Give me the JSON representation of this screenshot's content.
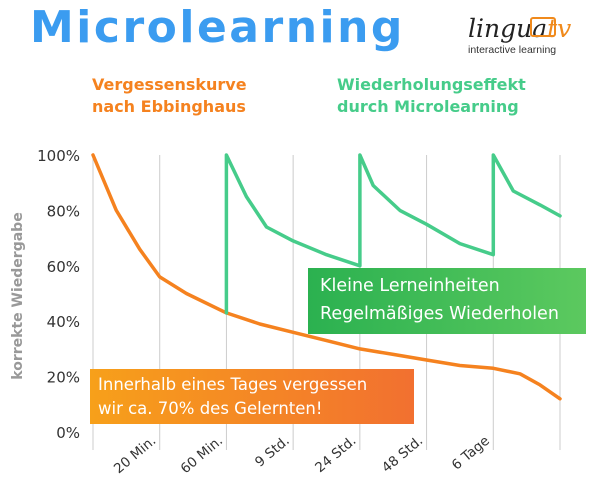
{
  "header": {
    "title": "Microlearning"
  },
  "logo": {
    "word_main": "lingua",
    "word_accent": "tv",
    "subtitle": "interactive learning"
  },
  "legend": {
    "orange": {
      "line1": "Vergessenskurve",
      "line2": "nach Ebbinghaus"
    },
    "green": {
      "line1": "Wiederholungseffekt",
      "line2": "durch Microlearning"
    }
  },
  "callouts": {
    "green": {
      "line1": "Kleine Lerneinheiten",
      "line2": "Regelmäßiges Wiederholen"
    },
    "orange": {
      "line1": "Innerhalb eines Tages vergessen",
      "line2": "wir ca. 70% des Gelernten!"
    }
  },
  "colors": {
    "title": "#3b9cf0",
    "forgetting_curve": "#f5821f",
    "repetition_curve": "#46cc8a",
    "grid": "#cccccc"
  },
  "chart_data": {
    "type": "line",
    "title": "",
    "xlabel": "",
    "ylabel": "korrekte Wiedergabe",
    "categories": [
      "20 Min.",
      "60 Min.",
      "9 Std.",
      "24 Std.",
      "48 Std.",
      "6 Tage"
    ],
    "y_ticks": [
      "100%",
      "80%",
      "60%",
      "40%",
      "20%",
      "0%"
    ],
    "ylim": [
      0,
      100
    ],
    "xlim": [
      0,
      7
    ],
    "grid": "vertical",
    "series": [
      {
        "name": "Vergessenskurve nach Ebbinghaus",
        "color": "#f5821f",
        "points": [
          [
            0,
            100
          ],
          [
            0.35,
            80
          ],
          [
            0.7,
            66
          ],
          [
            1,
            56
          ],
          [
            1.4,
            50
          ],
          [
            2,
            43
          ],
          [
            2.5,
            39
          ],
          [
            3,
            36
          ],
          [
            3.5,
            33
          ],
          [
            4,
            30
          ],
          [
            4.5,
            28
          ],
          [
            5,
            26
          ],
          [
            5.5,
            24
          ],
          [
            6,
            23
          ],
          [
            6.4,
            21
          ],
          [
            6.7,
            17
          ],
          [
            7,
            12
          ]
        ]
      },
      {
        "name": "Wiederholungseffekt durch Microlearning",
        "color": "#46cc8a",
        "points": [
          [
            2,
            43
          ],
          [
            2,
            100
          ],
          [
            2.3,
            85
          ],
          [
            2.6,
            74
          ],
          [
            3,
            69
          ],
          [
            3.5,
            64
          ],
          [
            4,
            60
          ],
          [
            4,
            100
          ],
          [
            4.2,
            89
          ],
          [
            4.6,
            80
          ],
          [
            5,
            75
          ],
          [
            5.5,
            68
          ],
          [
            6,
            64
          ],
          [
            6,
            100
          ],
          [
            6.3,
            87
          ],
          [
            6.7,
            82
          ],
          [
            7,
            78
          ]
        ]
      }
    ]
  }
}
